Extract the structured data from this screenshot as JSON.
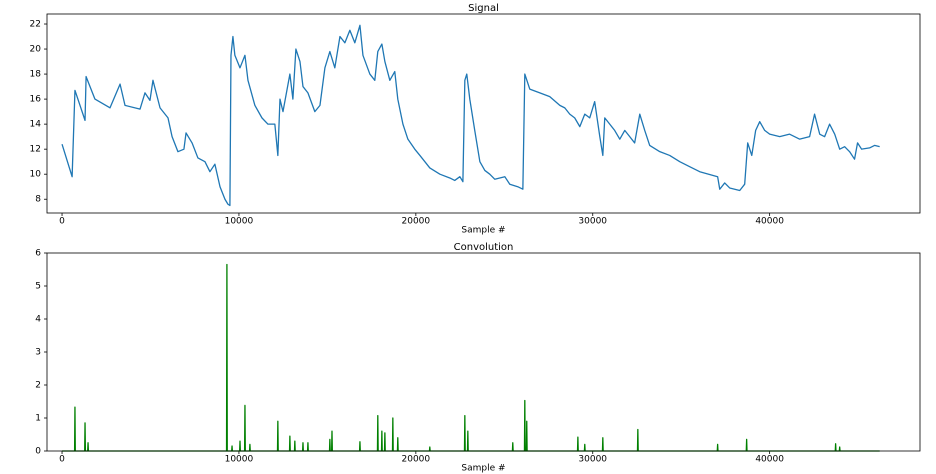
{
  "chart_data": [
    {
      "type": "line",
      "title": "Signal",
      "xlabel": "Sample #",
      "color": "#1f77b4",
      "x": [
        0,
        570,
        730,
        1300,
        1360,
        1860,
        2710,
        3280,
        3560,
        4410,
        4690,
        4970,
        5140,
        5540,
        5990,
        6220,
        6550,
        6890,
        7010,
        7350,
        7680,
        8080,
        8360,
        8640,
        8930,
        9210,
        9380,
        9490,
        9550,
        9660,
        9770,
        10060,
        10340,
        10510,
        10900,
        11300,
        11640,
        12030,
        12200,
        12320,
        12490,
        12880,
        13050,
        13220,
        13450,
        13620,
        13900,
        14290,
        14580,
        14860,
        15140,
        15420,
        15710,
        15990,
        16270,
        16550,
        16840,
        17010,
        17400,
        17680,
        17850,
        18080,
        18250,
        18530,
        18810,
        18980,
        19270,
        19550,
        19940,
        20230,
        20510,
        20790,
        21360,
        21920,
        22200,
        22490,
        22660,
        22770,
        22880,
        23050,
        23330,
        23620,
        23900,
        24180,
        24460,
        25030,
        25310,
        25760,
        26050,
        26160,
        26440,
        27010,
        27570,
        28140,
        28420,
        28700,
        28980,
        29270,
        29550,
        29830,
        30110,
        30400,
        30570,
        30680,
        30960,
        31240,
        31530,
        31810,
        32090,
        32370,
        32660,
        32940,
        33220,
        33790,
        34350,
        34920,
        35480,
        36050,
        37060,
        37180,
        37460,
        37740,
        38310,
        38590,
        38760,
        38990,
        39210,
        39440,
        39720,
        40000,
        40570,
        41130,
        41700,
        42260,
        42540,
        42830,
        43110,
        43390,
        43680,
        43960,
        44240,
        44520,
        44800,
        44970,
        45200,
        45650,
        45930,
        46220
      ],
      "values": [
        12.4,
        9.8,
        16.7,
        14.3,
        17.8,
        16.0,
        15.3,
        17.2,
        15.5,
        15.2,
        16.5,
        15.9,
        17.5,
        15.3,
        14.5,
        13.0,
        11.8,
        12.0,
        13.3,
        12.5,
        11.3,
        11.0,
        10.2,
        10.8,
        9.0,
        8.0,
        7.6,
        7.5,
        19.5,
        21.0,
        19.5,
        18.5,
        19.5,
        17.5,
        15.5,
        14.5,
        14.0,
        14.0,
        11.5,
        16.0,
        15.0,
        18.0,
        16.0,
        20.0,
        19.0,
        17.0,
        16.5,
        15.0,
        15.5,
        18.5,
        19.8,
        18.5,
        21.0,
        20.5,
        21.5,
        20.5,
        21.9,
        19.5,
        18.0,
        17.5,
        19.8,
        20.4,
        19.0,
        17.5,
        18.2,
        16.0,
        14.0,
        12.8,
        12.0,
        11.5,
        11.0,
        10.5,
        10.0,
        9.7,
        9.5,
        9.8,
        9.4,
        17.5,
        18.0,
        16.0,
        13.5,
        11.0,
        10.3,
        10.0,
        9.6,
        9.8,
        9.2,
        9.0,
        8.8,
        18.0,
        16.8,
        16.5,
        16.2,
        15.5,
        15.3,
        14.8,
        14.5,
        13.8,
        14.8,
        14.5,
        15.8,
        13.0,
        11.5,
        14.5,
        14.0,
        13.5,
        12.8,
        13.5,
        13.0,
        12.5,
        14.8,
        13.5,
        12.3,
        11.8,
        11.5,
        11.0,
        10.6,
        10.2,
        9.8,
        8.8,
        9.3,
        8.9,
        8.7,
        9.2,
        12.5,
        11.5,
        13.5,
        14.2,
        13.5,
        13.2,
        13.0,
        13.2,
        12.8,
        13.0,
        14.8,
        13.2,
        13.0,
        14.0,
        13.2,
        12.0,
        12.2,
        11.8,
        11.2,
        12.5,
        12.0,
        12.1,
        12.3,
        12.2
      ],
      "xlim": [
        -850,
        48500
      ],
      "ylim": [
        6.9,
        22.8
      ],
      "xticks": [
        0,
        10000,
        20000,
        30000,
        40000
      ],
      "yticks": [
        8,
        10,
        12,
        14,
        16,
        18,
        20,
        22
      ]
    },
    {
      "type": "line",
      "title": "Convolution",
      "xlabel": "Sample #",
      "color": "#008000",
      "x": [
        0,
        710,
        730,
        750,
        1280,
        1300,
        1320,
        1450,
        1470,
        1490,
        9300,
        9320,
        9340,
        9590,
        9610,
        9630,
        10040,
        10060,
        10080,
        10320,
        10340,
        10360,
        10600,
        10620,
        10640,
        12180,
        12200,
        12220,
        12860,
        12880,
        12900,
        13140,
        13160,
        13180,
        13600,
        13620,
        13640,
        13880,
        13900,
        13920,
        15120,
        15140,
        15160,
        15240,
        15260,
        15280,
        16820,
        16840,
        16860,
        17830,
        17850,
        17870,
        18060,
        18080,
        18100,
        18230,
        18250,
        18270,
        18680,
        18700,
        18720,
        18960,
        18980,
        19000,
        20770,
        20790,
        20810,
        22750,
        22770,
        22790,
        22920,
        22940,
        22960,
        25460,
        25480,
        25500,
        26140,
        26160,
        26180,
        26250,
        26270,
        26290,
        29140,
        29160,
        29180,
        29530,
        29550,
        29570,
        30550,
        30570,
        30590,
        32530,
        32550,
        32570,
        37040,
        37060,
        37080,
        38680,
        38700,
        38720,
        43710,
        43730,
        43750,
        43940,
        43960,
        43980,
        46220
      ],
      "values": [
        0,
        0,
        1.33,
        0,
        0,
        0.85,
        0,
        0,
        0.25,
        0,
        0,
        5.65,
        0,
        0,
        0.15,
        0,
        0,
        0.3,
        0,
        0,
        1.38,
        0,
        0,
        0.2,
        0,
        0,
        0.9,
        0,
        0,
        0.45,
        0,
        0,
        0.3,
        0,
        0,
        0.25,
        0,
        0,
        0.25,
        0,
        0,
        0.35,
        0,
        0,
        0.6,
        0,
        0,
        0.28,
        0,
        0,
        1.07,
        0,
        0,
        0.6,
        0,
        0,
        0.55,
        0,
        0,
        1.0,
        0,
        0,
        0.4,
        0,
        0,
        0.12,
        0,
        0,
        1.07,
        0,
        0,
        0.6,
        0,
        0,
        0.25,
        0,
        0,
        1.53,
        0,
        0,
        0.9,
        0,
        0,
        0.42,
        0,
        0,
        0.2,
        0,
        0,
        0.4,
        0,
        0,
        0.65,
        0,
        0,
        0.2,
        0,
        0,
        0.35,
        0,
        0,
        0.22,
        0,
        0,
        0.12,
        0,
        0
      ],
      "xlim": [
        -850,
        48500
      ],
      "ylim": [
        0,
        6
      ],
      "xticks": [
        0,
        10000,
        20000,
        30000,
        40000
      ],
      "yticks": [
        0,
        1,
        2,
        3,
        4,
        5,
        6
      ]
    }
  ]
}
